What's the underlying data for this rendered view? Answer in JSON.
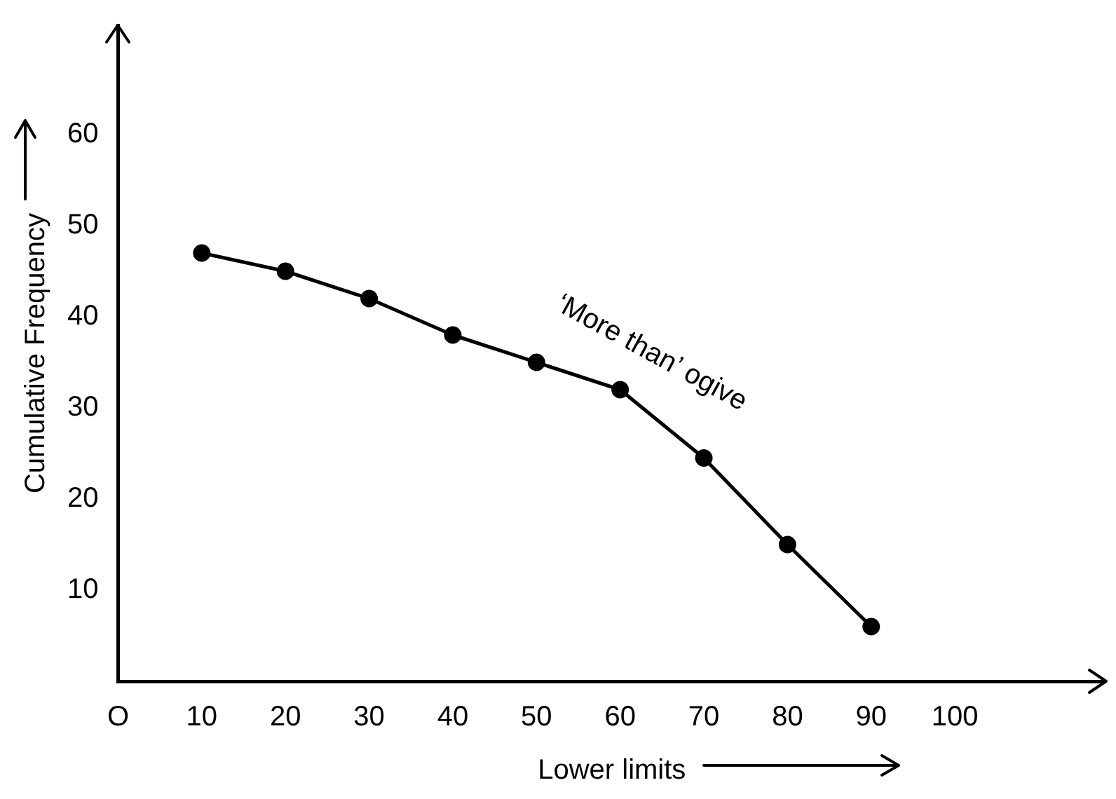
{
  "chart_data": {
    "type": "line",
    "xlabel": "Lower limits",
    "ylabel": "Cumulative Frequency",
    "x": [
      10,
      20,
      30,
      40,
      50,
      60,
      70,
      80,
      90
    ],
    "series": [
      {
        "color": "#000000",
        "values": [
          47,
          45,
          42,
          38,
          35,
          32,
          24.5,
          15,
          6
        ]
      }
    ],
    "xlim": [
      0,
      118
    ],
    "ylim": [
      0,
      72
    ],
    "xticks": [
      {
        "value": 0,
        "label": "O"
      },
      10,
      20,
      30,
      40,
      50,
      60,
      70,
      80,
      90,
      100
    ],
    "yticks": [
      10,
      20,
      30,
      40,
      50,
      60
    ],
    "annotations": [
      "‘More than’ ogive"
    ],
    "grid": false,
    "legend": false,
    "marker": "circle",
    "line_style": "solid"
  }
}
